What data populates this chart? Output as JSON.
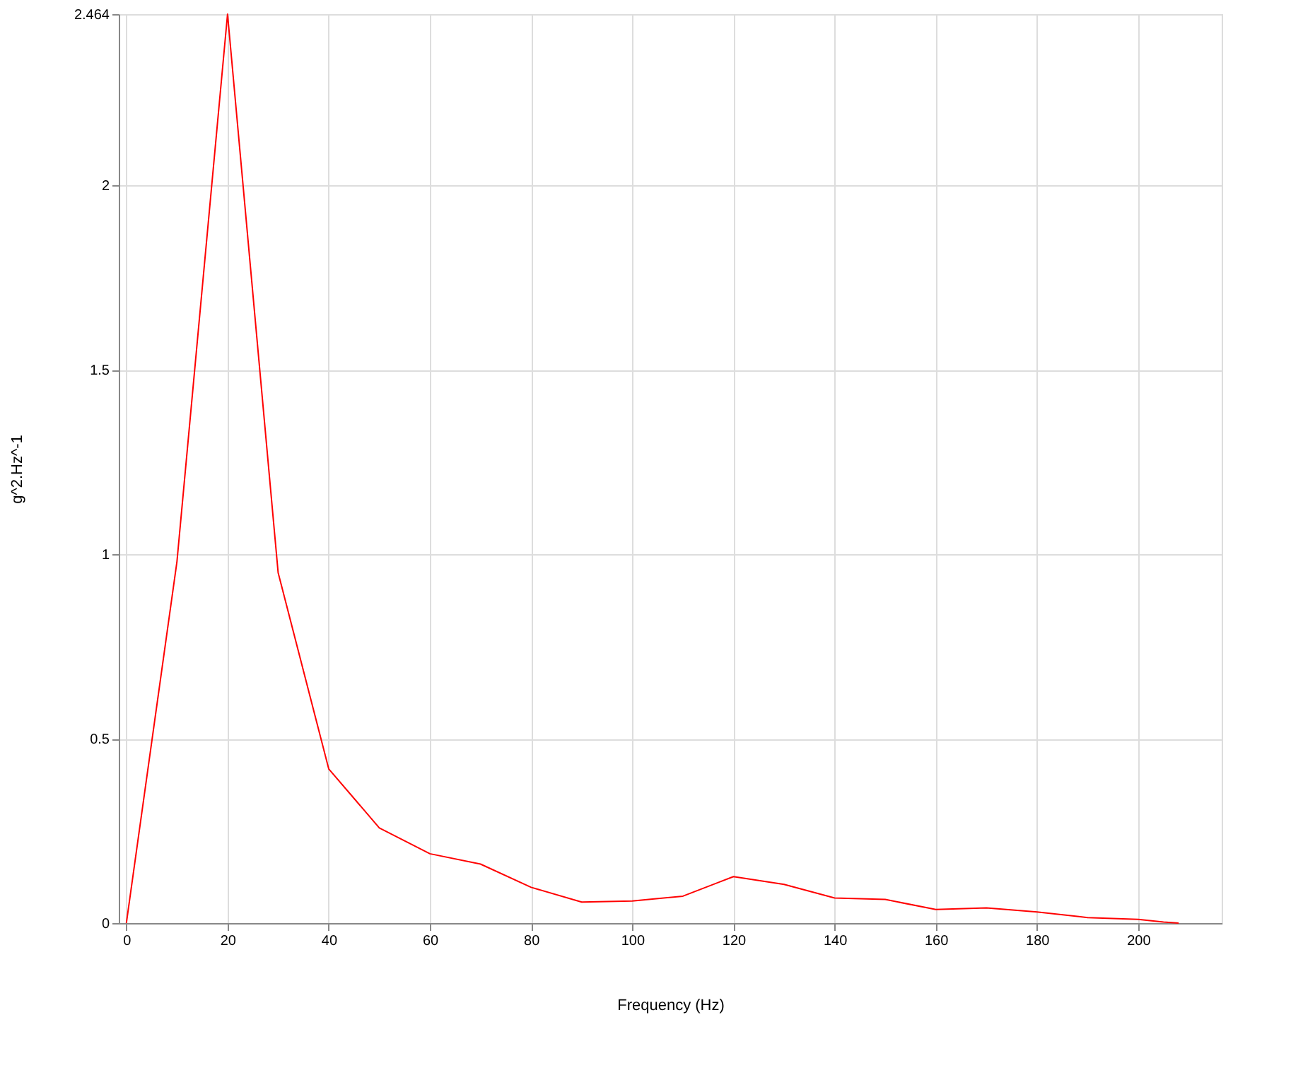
{
  "chart_data": {
    "type": "line",
    "xlabel": "Frequency (Hz)",
    "ylabel": "g^2.Hz^-1",
    "x": [
      0,
      10,
      20,
      30,
      40,
      50,
      60,
      70,
      80,
      90,
      100,
      110,
      120,
      130,
      140,
      150,
      160,
      170,
      180,
      190,
      200,
      205,
      208
    ],
    "series": [
      {
        "color": "#ff0000",
        "values": [
          0,
          0.98,
          2.464,
          0.95,
          0.418,
          0.258,
          0.188,
          0.16,
          0.097,
          0.057,
          0.06,
          0.073,
          0.126,
          0.105,
          0.068,
          0.064,
          0.037,
          0.041,
          0.03,
          0.015,
          0.01,
          0.003,
          0
        ]
      }
    ],
    "xlim": [
      -1.5,
      216.5
    ],
    "xticks": [
      0,
      20,
      40,
      60,
      80,
      100,
      120,
      140,
      160,
      180,
      200
    ],
    "ylim": [
      0,
      2.464
    ],
    "yticks": [
      0,
      0.5,
      1,
      1.5,
      2,
      2.464
    ],
    "grid": true,
    "legend": false,
    "marker": "none",
    "line_style": "solid"
  }
}
